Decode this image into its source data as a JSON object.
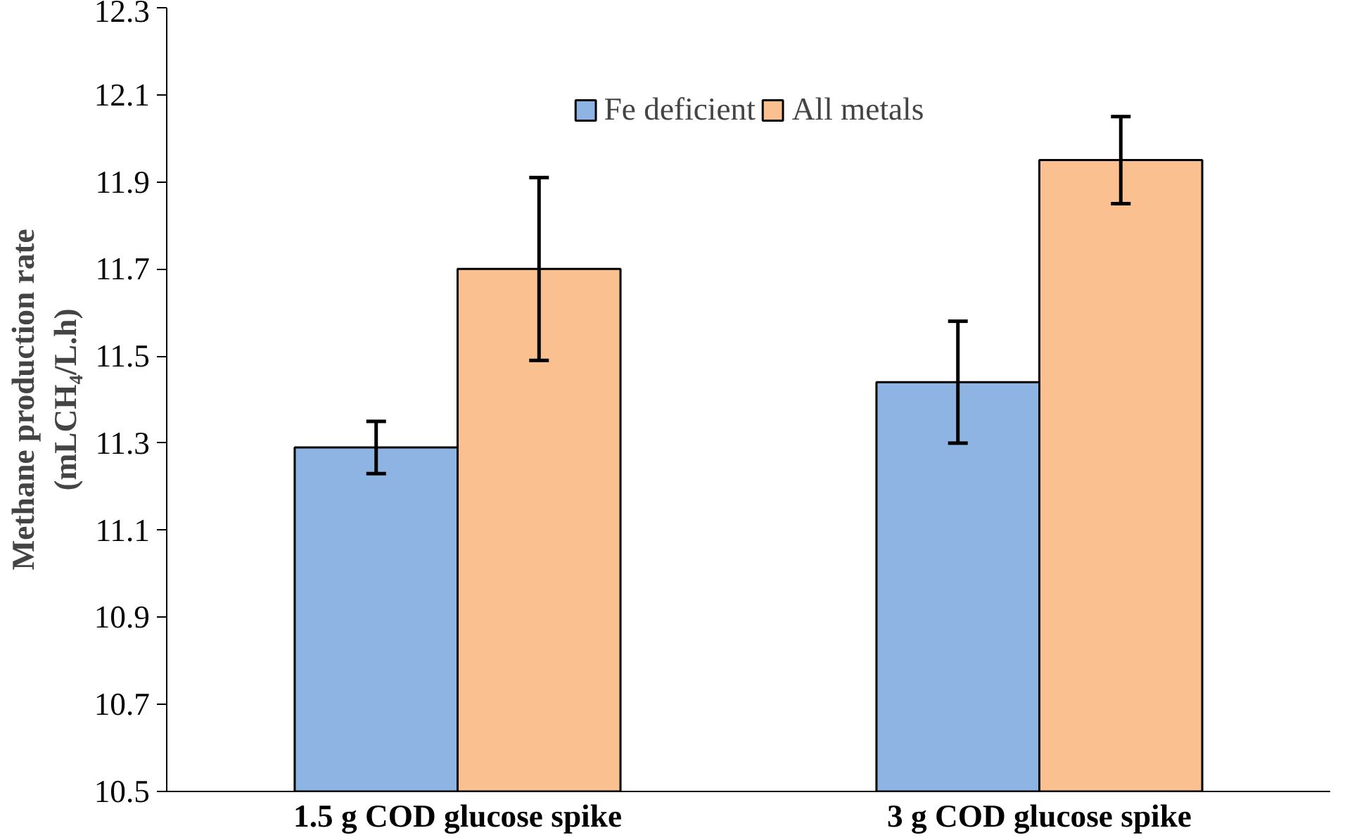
{
  "chart_data": {
    "type": "bar",
    "ylabel": "Methane production rate\n(mLCH₄/L.h)",
    "categories": [
      "1.5 g COD glucose spike",
      "3 g COD glucose spike"
    ],
    "series": [
      {
        "name": "Fe deficient",
        "color": "#8eb4e3",
        "values": [
          11.29,
          11.44
        ],
        "errors": [
          0.06,
          0.14
        ]
      },
      {
        "name": "All metals",
        "color": "#fac090",
        "values": [
          11.7,
          11.95
        ],
        "errors": [
          0.21,
          0.1
        ]
      }
    ],
    "ylim": [
      10.5,
      12.3
    ],
    "yticks": [
      10.5,
      10.7,
      10.9,
      11.1,
      11.3,
      11.5,
      11.7,
      11.9,
      12.1,
      12.3
    ],
    "grid": false,
    "legend": "top"
  }
}
